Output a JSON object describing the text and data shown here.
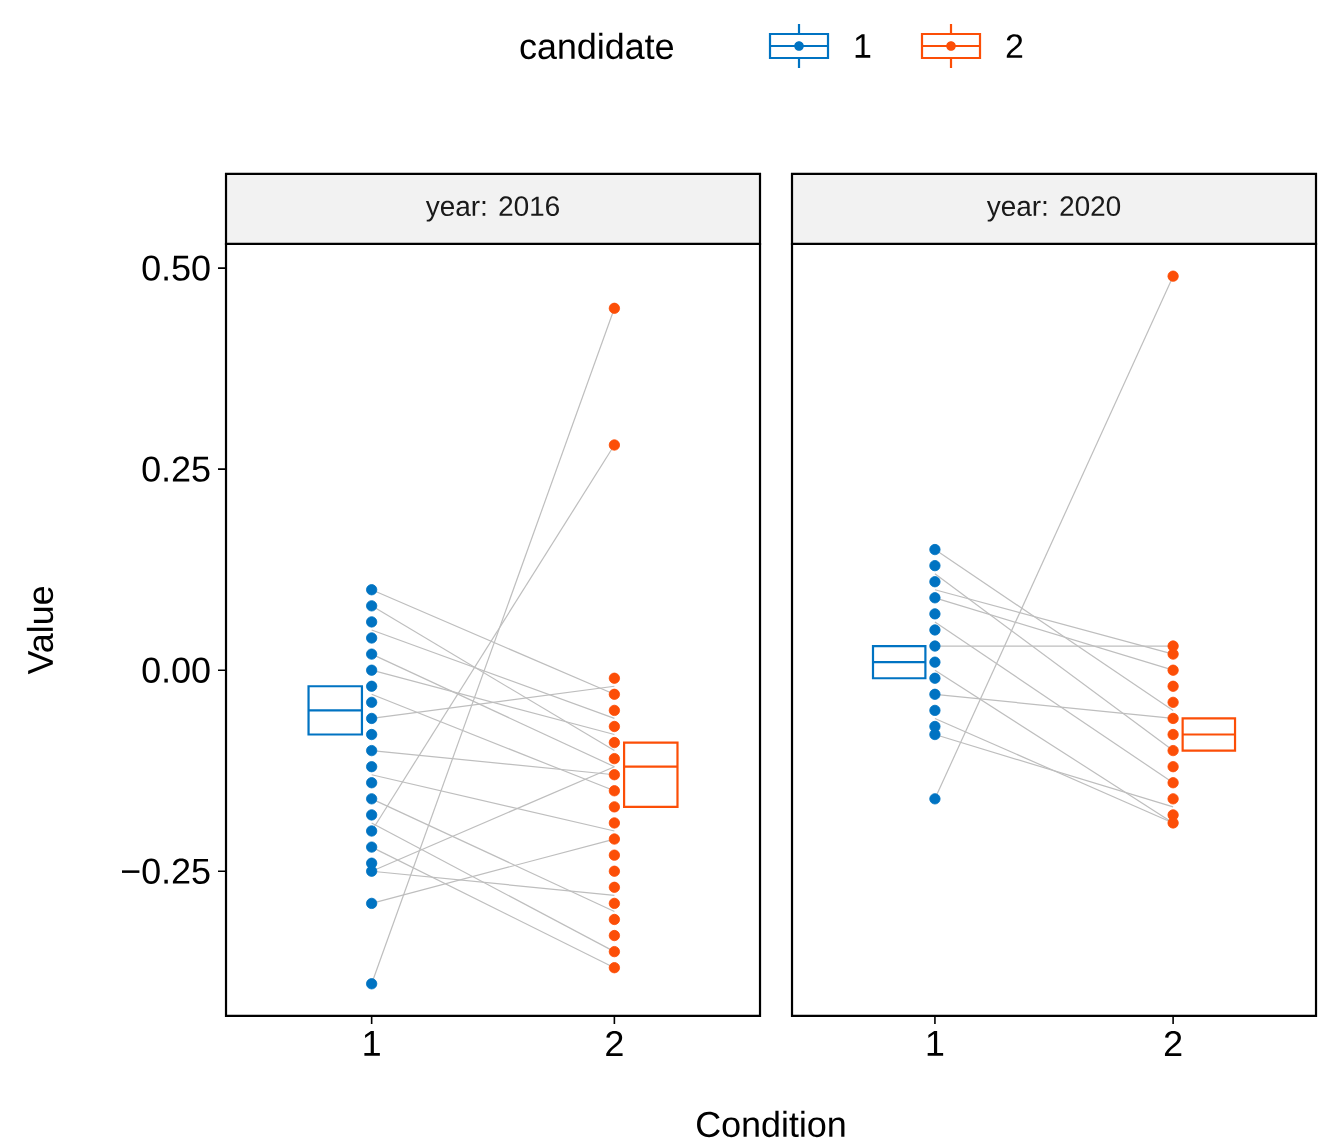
{
  "chart_data": [
    {
      "type": "box",
      "title": "year: 2016",
      "xlabel": "Condition",
      "ylabel": "Value",
      "legend_title": "candidate",
      "legend": "top",
      "categories": [
        "1",
        "2"
      ],
      "ylim": [
        -0.43,
        0.53
      ],
      "yticks": [
        {
          "value": -0.25,
          "label": "−0.25"
        },
        {
          "value": 0,
          "label": "0.00"
        },
        {
          "value": 0.25,
          "label": "0.25"
        },
        {
          "value": 0.5,
          "label": "0.50"
        }
      ],
      "grid": false,
      "series": [
        {
          "type": "line",
          "color": "#bebebe",
          "x": [
            "1",
            "2"
          ],
          "values": [
            0.1,
            -0.03
          ]
        },
        {
          "type": "line",
          "color": "#bebebe",
          "x": [
            "1",
            "2"
          ],
          "values": [
            0.08,
            -0.1
          ]
        },
        {
          "type": "line",
          "color": "#bebebe",
          "x": [
            "1",
            "2"
          ],
          "values": [
            0.05,
            -0.06
          ]
        },
        {
          "type": "line",
          "color": "#bebebe",
          "x": [
            "1",
            "2"
          ],
          "values": [
            0.02,
            -0.12
          ]
        },
        {
          "type": "line",
          "color": "#bebebe",
          "x": [
            "1",
            "2"
          ],
          "values": [
            0.0,
            -0.08
          ]
        },
        {
          "type": "line",
          "color": "#bebebe",
          "x": [
            "1",
            "2"
          ],
          "values": [
            -0.03,
            -0.15
          ]
        },
        {
          "type": "line",
          "color": "#bebebe",
          "x": [
            "1",
            "2"
          ],
          "values": [
            -0.06,
            -0.02
          ]
        },
        {
          "type": "line",
          "color": "#bebebe",
          "x": [
            "1",
            "2"
          ],
          "values": [
            -0.1,
            -0.13
          ]
        },
        {
          "type": "line",
          "color": "#bebebe",
          "x": [
            "1",
            "2"
          ],
          "values": [
            -0.13,
            -0.2
          ]
        },
        {
          "type": "line",
          "color": "#bebebe",
          "x": [
            "1",
            "2"
          ],
          "values": [
            -0.16,
            -0.3
          ]
        },
        {
          "type": "line",
          "color": "#bebebe",
          "x": [
            "1",
            "2"
          ],
          "values": [
            -0.19,
            -0.35
          ]
        },
        {
          "type": "line",
          "color": "#bebebe",
          "x": [
            "1",
            "2"
          ],
          "values": [
            -0.22,
            -0.37
          ]
        },
        {
          "type": "line",
          "color": "#bebebe",
          "x": [
            "1",
            "2"
          ],
          "values": [
            -0.25,
            -0.28
          ]
        },
        {
          "type": "line",
          "color": "#bebebe",
          "x": [
            "1",
            "2"
          ],
          "values": [
            -0.25,
            -0.12
          ]
        },
        {
          "type": "line",
          "color": "#bebebe",
          "x": [
            "1",
            "2"
          ],
          "values": [
            -0.29,
            -0.21
          ]
        },
        {
          "type": "line",
          "color": "#bebebe",
          "x": [
            "1",
            "2"
          ],
          "values": [
            -0.39,
            0.45
          ]
        },
        {
          "type": "line",
          "color": "#bebebe",
          "x": [
            "1",
            "2"
          ],
          "values": [
            -0.2,
            0.28
          ]
        },
        {
          "type": "scatter",
          "color": "#0073c2",
          "x": [
            "1",
            "1",
            "1",
            "1",
            "1",
            "1",
            "1",
            "1",
            "1",
            "1",
            "1",
            "1",
            "1",
            "1",
            "1",
            "1",
            "1",
            "1",
            "1",
            "1",
            "1"
          ],
          "values": [
            0.1,
            0.08,
            0.06,
            0.04,
            0.02,
            0.0,
            -0.02,
            -0.04,
            -0.06,
            -0.08,
            -0.1,
            -0.12,
            -0.14,
            -0.16,
            -0.18,
            -0.2,
            -0.22,
            -0.24,
            -0.25,
            -0.29,
            -0.39
          ]
        },
        {
          "type": "scatter",
          "color": "#fc4e07",
          "x": [
            "2",
            "2",
            "2",
            "2",
            "2",
            "2",
            "2",
            "2",
            "2",
            "2",
            "2",
            "2",
            "2",
            "2",
            "2",
            "2",
            "2",
            "2",
            "2",
            "2",
            "2"
          ],
          "values": [
            0.45,
            0.28,
            -0.01,
            -0.03,
            -0.05,
            -0.07,
            -0.09,
            -0.11,
            -0.13,
            -0.15,
            -0.17,
            -0.19,
            -0.21,
            -0.23,
            -0.25,
            -0.27,
            -0.29,
            -0.31,
            -0.33,
            -0.35,
            -0.37
          ]
        },
        {
          "type": "box",
          "name": "1",
          "color": "#0073c2",
          "boxes": [
            {
              "low": -0.08,
              "q1": -0.08,
              "median": -0.05,
              "q3": -0.02,
              "high": -0.02
            },
            null
          ]
        },
        {
          "type": "box",
          "name": "2",
          "color": "#fc4e07",
          "boxes": [
            null,
            {
              "low": -0.17,
              "q1": -0.17,
              "median": -0.12,
              "q3": -0.09,
              "high": -0.09
            }
          ]
        }
      ]
    },
    {
      "type": "box",
      "title": "year: 2020",
      "tick_labels": "x",
      "categories": [
        "1",
        "2"
      ],
      "ylim": [
        -0.43,
        0.53
      ],
      "grid": false,
      "series": [
        {
          "type": "line",
          "color": "#bebebe",
          "x": [
            "1",
            "2"
          ],
          "values": [
            0.15,
            -0.05
          ]
        },
        {
          "type": "line",
          "color": "#bebebe",
          "x": [
            "1",
            "2"
          ],
          "values": [
            0.12,
            -0.1
          ]
        },
        {
          "type": "line",
          "color": "#bebebe",
          "x": [
            "1",
            "2"
          ],
          "values": [
            0.1,
            0.02
          ]
        },
        {
          "type": "line",
          "color": "#bebebe",
          "x": [
            "1",
            "2"
          ],
          "values": [
            0.09,
            0.0
          ]
        },
        {
          "type": "line",
          "color": "#bebebe",
          "x": [
            "1",
            "2"
          ],
          "values": [
            0.06,
            -0.14
          ]
        },
        {
          "type": "line",
          "color": "#bebebe",
          "x": [
            "1",
            "2"
          ],
          "values": [
            0.03,
            0.03
          ]
        },
        {
          "type": "line",
          "color": "#bebebe",
          "x": [
            "1",
            "2"
          ],
          "values": [
            0.0,
            -0.19
          ]
        },
        {
          "type": "line",
          "color": "#bebebe",
          "x": [
            "1",
            "2"
          ],
          "values": [
            -0.03,
            -0.06
          ]
        },
        {
          "type": "line",
          "color": "#bebebe",
          "x": [
            "1",
            "2"
          ],
          "values": [
            -0.06,
            -0.19
          ]
        },
        {
          "type": "line",
          "color": "#bebebe",
          "x": [
            "1",
            "2"
          ],
          "values": [
            -0.08,
            -0.17
          ]
        },
        {
          "type": "line",
          "color": "#bebebe",
          "x": [
            "1",
            "2"
          ],
          "values": [
            -0.16,
            0.49
          ]
        },
        {
          "type": "scatter",
          "color": "#0073c2",
          "x": [
            "1",
            "1",
            "1",
            "1",
            "1",
            "1",
            "1",
            "1",
            "1",
            "1",
            "1",
            "1",
            "1",
            "1"
          ],
          "values": [
            0.15,
            0.13,
            0.11,
            0.09,
            0.07,
            0.05,
            0.03,
            0.01,
            -0.01,
            -0.03,
            -0.05,
            -0.07,
            -0.08,
            -0.16
          ]
        },
        {
          "type": "scatter",
          "color": "#fc4e07",
          "x": [
            "2",
            "2",
            "2",
            "2",
            "2",
            "2",
            "2",
            "2",
            "2",
            "2",
            "2",
            "2",
            "2",
            "2"
          ],
          "values": [
            0.49,
            0.03,
            0.02,
            0.0,
            -0.02,
            -0.04,
            -0.06,
            -0.08,
            -0.1,
            -0.12,
            -0.14,
            -0.16,
            -0.18,
            -0.19
          ]
        },
        {
          "type": "box",
          "color": "#0073c2",
          "boxes": [
            {
              "low": -0.01,
              "q1": -0.01,
              "median": 0.01,
              "q3": 0.03,
              "high": 0.03
            },
            null
          ]
        },
        {
          "type": "box",
          "color": "#fc4e07",
          "boxes": [
            null,
            {
              "low": -0.1,
              "q1": -0.1,
              "median": -0.08,
              "q3": -0.06,
              "high": -0.06
            }
          ]
        }
      ]
    }
  ]
}
